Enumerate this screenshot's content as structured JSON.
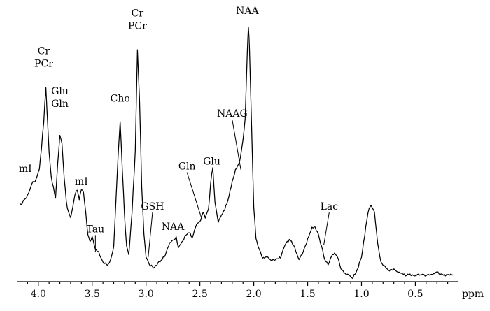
{
  "chart_data": {
    "type": "line",
    "title": "",
    "xlabel": "ppm",
    "ylabel": "",
    "x_reversed": true,
    "xlim": [
      4.2,
      0.1
    ],
    "ylim": [
      0,
      1.0
    ],
    "grid": false,
    "legend": "none",
    "xticks": [
      4.0,
      3.5,
      3.0,
      2.5,
      2.0,
      1.5,
      1.0,
      0.5
    ],
    "xtick_labels": [
      "4.0",
      "3.5",
      "3.0",
      "2.5",
      "2.0",
      "1.5",
      "1.0",
      "0.5"
    ],
    "series": [
      {
        "x": [
          4.17,
          4.12,
          4.08,
          4.05,
          4.02,
          3.99,
          3.97,
          3.95,
          3.93,
          3.9,
          3.88,
          3.86,
          3.84,
          3.82,
          3.8,
          3.78,
          3.76,
          3.74,
          3.72,
          3.7,
          3.68,
          3.66,
          3.64,
          3.62,
          3.6,
          3.58,
          3.56,
          3.54,
          3.52,
          3.5,
          3.47,
          3.44,
          3.4,
          3.36,
          3.33,
          3.3,
          3.28,
          3.26,
          3.24,
          3.22,
          3.2,
          3.18,
          3.16,
          3.13,
          3.1,
          3.08,
          3.06,
          3.04,
          3.02,
          3.0,
          2.97,
          2.93,
          2.9,
          2.86,
          2.82,
          2.78,
          2.75,
          2.72,
          2.7,
          2.67,
          2.64,
          2.6,
          2.57,
          2.53,
          2.5,
          2.47,
          2.45,
          2.42,
          2.4,
          2.38,
          2.36,
          2.33,
          2.3,
          2.27,
          2.24,
          2.2,
          2.17,
          2.14,
          2.12,
          2.1,
          2.08,
          2.06,
          2.05,
          2.04,
          2.02,
          2.0,
          1.98,
          1.95,
          1.92,
          1.88,
          1.84,
          1.8,
          1.75,
          1.7,
          1.66,
          1.62,
          1.58,
          1.54,
          1.5,
          1.46,
          1.43,
          1.4,
          1.37,
          1.34,
          1.31,
          1.28,
          1.25,
          1.22,
          1.19,
          1.16,
          1.12,
          1.08,
          1.04,
          1.0,
          0.97,
          0.94,
          0.91,
          0.88,
          0.85,
          0.82,
          0.78,
          0.74,
          0.7,
          0.65,
          0.6,
          0.55,
          0.5,
          0.45,
          0.4,
          0.35,
          0.3,
          0.25,
          0.2,
          0.15
        ],
        "y": [
          0.29,
          0.31,
          0.35,
          0.38,
          0.39,
          0.43,
          0.52,
          0.62,
          0.76,
          0.5,
          0.4,
          0.36,
          0.32,
          0.45,
          0.57,
          0.53,
          0.4,
          0.3,
          0.26,
          0.24,
          0.28,
          0.33,
          0.35,
          0.31,
          0.35,
          0.34,
          0.26,
          0.17,
          0.14,
          0.16,
          0.11,
          0.1,
          0.06,
          0.05,
          0.07,
          0.12,
          0.3,
          0.48,
          0.62,
          0.43,
          0.25,
          0.12,
          0.09,
          0.26,
          0.5,
          0.91,
          0.71,
          0.36,
          0.18,
          0.08,
          0.05,
          0.04,
          0.05,
          0.07,
          0.09,
          0.14,
          0.15,
          0.16,
          0.12,
          0.14,
          0.16,
          0.18,
          0.16,
          0.21,
          0.22,
          0.26,
          0.24,
          0.27,
          0.38,
          0.44,
          0.3,
          0.22,
          0.25,
          0.27,
          0.31,
          0.38,
          0.43,
          0.45,
          0.49,
          0.55,
          0.63,
          0.9,
          1.0,
          0.92,
          0.6,
          0.28,
          0.16,
          0.11,
          0.08,
          0.08,
          0.07,
          0.07,
          0.08,
          0.14,
          0.15,
          0.12,
          0.07,
          0.1,
          0.15,
          0.2,
          0.2,
          0.17,
          0.12,
          0.07,
          0.05,
          0.08,
          0.1,
          0.08,
          0.03,
          0.02,
          0.01,
          0.0,
          0.03,
          0.08,
          0.17,
          0.26,
          0.29,
          0.26,
          0.14,
          0.06,
          0.04,
          0.03,
          0.03,
          0.02,
          0.01,
          0.01,
          0.01,
          0.01,
          0.01,
          0.01,
          0.02,
          0.01,
          0.01,
          0.01
        ]
      }
    ],
    "annotations": [
      {
        "lines": [
          "mI"
        ],
        "x": 4.12,
        "y": 0.42
      },
      {
        "lines": [
          "Cr",
          "PCr"
        ],
        "x": 3.95,
        "y": 0.84
      },
      {
        "lines": [
          "Glu",
          "Gln"
        ],
        "x": 3.8,
        "y": 0.68
      },
      {
        "lines": [
          "mI"
        ],
        "x": 3.6,
        "y": 0.37
      },
      {
        "lines": [
          "Tau"
        ],
        "x": 3.47,
        "y": 0.18,
        "leader_to": [
          3.47,
          0.1
        ]
      },
      {
        "lines": [
          "Cho"
        ],
        "x": 3.24,
        "y": 0.7
      },
      {
        "lines": [
          "Cr",
          "PCr"
        ],
        "x": 3.08,
        "y": 0.99
      },
      {
        "lines": [
          "GSH"
        ],
        "x": 2.94,
        "y": 0.27,
        "leader_to": [
          2.98,
          0.08
        ]
      },
      {
        "lines": [
          "NAA"
        ],
        "x": 2.75,
        "y": 0.19
      },
      {
        "lines": [
          "Gln"
        ],
        "x": 2.62,
        "y": 0.43,
        "leader_to": [
          2.48,
          0.23
        ]
      },
      {
        "lines": [
          "Glu"
        ],
        "x": 2.39,
        "y": 0.45
      },
      {
        "lines": [
          "NAAG"
        ],
        "x": 2.2,
        "y": 0.64,
        "leader_to": [
          2.12,
          0.43
        ]
      },
      {
        "lines": [
          "NAA"
        ],
        "x": 2.06,
        "y": 1.05
      },
      {
        "lines": [
          "Lac"
        ],
        "x": 1.3,
        "y": 0.27,
        "leader_to": [
          1.35,
          0.13
        ]
      }
    ]
  }
}
